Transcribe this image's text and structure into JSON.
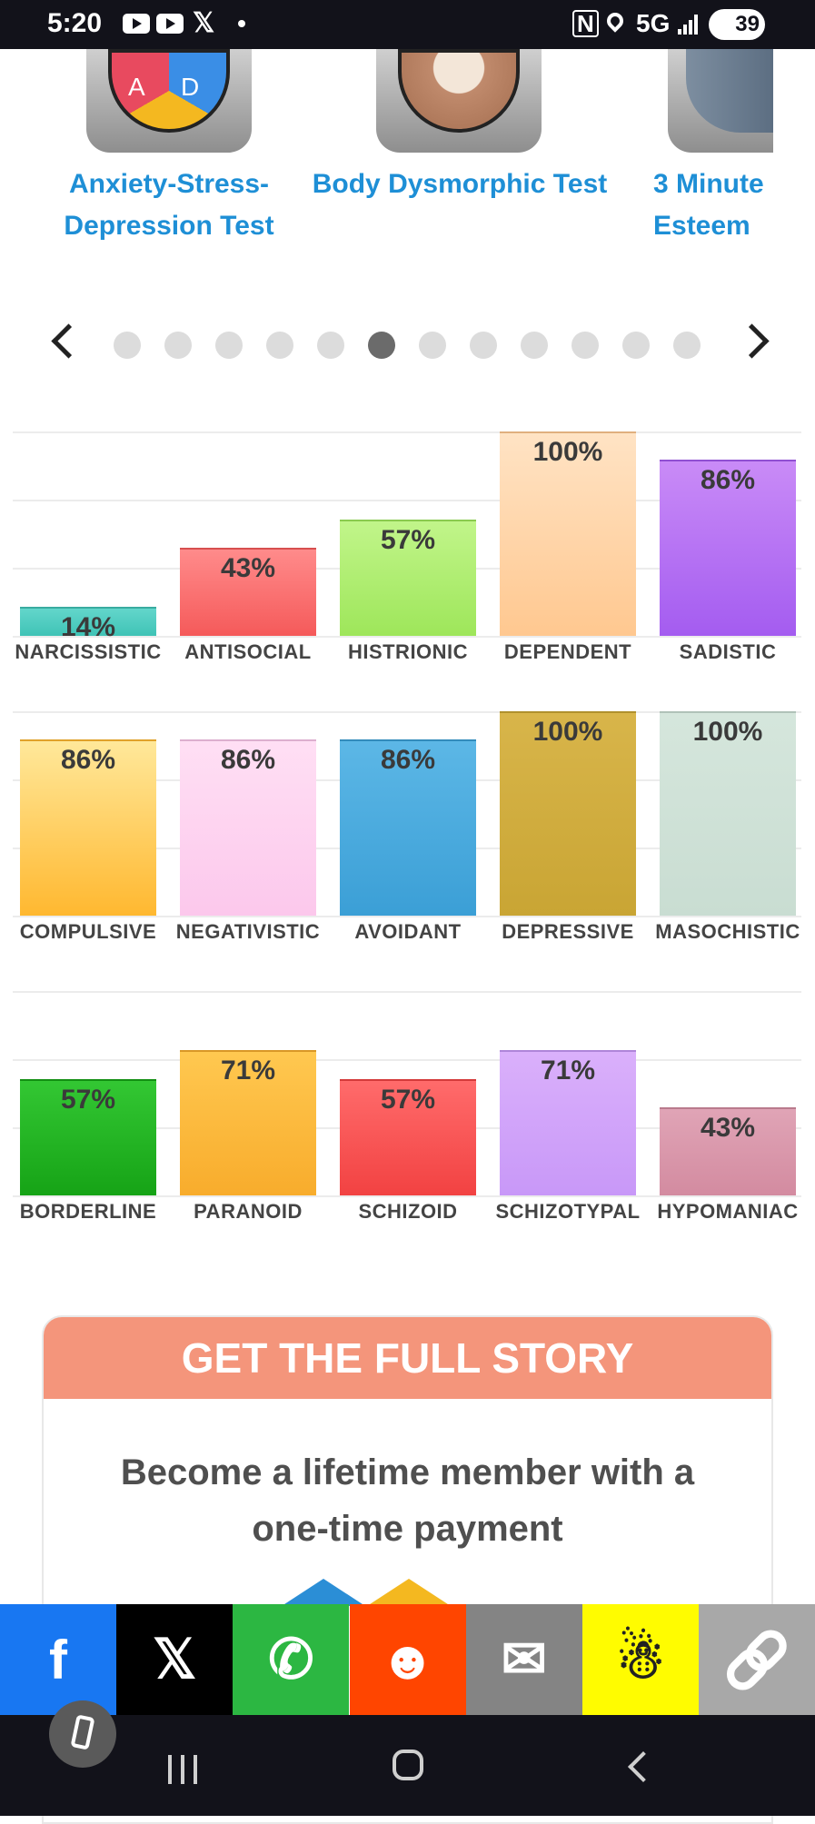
{
  "status_bar": {
    "time": "5:20",
    "x_glyph": "𝕏",
    "nfc_glyph": "N",
    "network": "5G",
    "battery": "39",
    "icons": [
      "youtube-icon",
      "youtube-icon",
      "x-icon",
      "notification-dot",
      "nfc-icon",
      "location-icon",
      "signal-icon",
      "battery-icon"
    ]
  },
  "carousel": {
    "tests": [
      {
        "title": "Anxiety-Stress-Depression Test",
        "badge_left": "A",
        "badge_right": "D"
      },
      {
        "title": "Body Dysmorphic Test"
      },
      {
        "title": "3 Minute Esteem"
      }
    ],
    "active_page": 6,
    "page_count": 12
  },
  "chart_data": {
    "type": "bar",
    "unit": "%",
    "ylim": [
      0,
      100
    ],
    "grid": true,
    "rows": [
      {
        "categories": [
          "NARCISSISTIC",
          "ANTISOCIAL",
          "HISTRIONIC",
          "DEPENDENT",
          "SADISTIC"
        ],
        "values": [
          14,
          43,
          57,
          100,
          86
        ],
        "labels": [
          "14%",
          "43%",
          "57%",
          "100%",
          "86%"
        ],
        "colors": [
          [
            "#63d6cb",
            "#3fc3b6"
          ],
          [
            "#ff8b8b",
            "#f55a5a"
          ],
          [
            "#c1f58a",
            "#9ee65a"
          ],
          [
            "#ffe3c4",
            "#ffc890"
          ],
          [
            "#c98bf7",
            "#a45cf0"
          ]
        ]
      },
      {
        "categories": [
          "COMPULSIVE",
          "NEGATIVISTIC",
          "AVOIDANT",
          "DEPRESSIVE",
          "MASOCHISTIC"
        ],
        "values": [
          86,
          86,
          86,
          100,
          100
        ],
        "labels": [
          "86%",
          "86%",
          "86%",
          "100%",
          "100%"
        ],
        "colors": [
          [
            "#ffe89a",
            "#ffb830"
          ],
          [
            "#ffdff4",
            "#fcc8ec"
          ],
          [
            "#5cb7e6",
            "#3b9fd6"
          ],
          [
            "#d8b54a",
            "#c9a534"
          ],
          [
            "#d5e6dc",
            "#c9ddd2"
          ]
        ]
      },
      {
        "categories": [
          "BORDERLINE",
          "PARANOID",
          "SCHIZOID",
          "SCHIZOTYPAL",
          "HYPOMANIAC"
        ],
        "values": [
          57,
          71,
          57,
          71,
          43
        ],
        "labels": [
          "57%",
          "71%",
          "57%",
          "71%",
          "43%"
        ],
        "colors": [
          [
            "#33c733",
            "#16a316"
          ],
          [
            "#ffc850",
            "#f8ac2c"
          ],
          [
            "#ff6b6b",
            "#f24242"
          ],
          [
            "#dab0fb",
            "#c898f8"
          ],
          [
            "#e0a4b6",
            "#d38ba0"
          ]
        ]
      }
    ]
  },
  "promo": {
    "header": "GET THE FULL STORY",
    "line1": "Become a lifetime member with a",
    "line2": "one-time payment"
  },
  "share_bar": {
    "buttons": [
      {
        "name": "facebook",
        "icon": "facebook-icon",
        "glyph": "f",
        "color": "#1877f2"
      },
      {
        "name": "x",
        "icon": "x-icon",
        "glyph": "𝕏",
        "color": "#000000"
      },
      {
        "name": "whatsapp",
        "icon": "whatsapp-icon",
        "glyph": "✆",
        "color": "#2cb742"
      },
      {
        "name": "reddit",
        "icon": "reddit-icon",
        "glyph": "☻",
        "color": "#ff4500"
      },
      {
        "name": "email",
        "icon": "email-icon",
        "glyph": "✉",
        "color": "#848484"
      },
      {
        "name": "snapchat",
        "icon": "snapchat-icon",
        "glyph": "☃",
        "color": "#fffc00"
      },
      {
        "name": "copy-link",
        "icon": "link-icon",
        "glyph": "🔗",
        "color": "#a8a8a8"
      }
    ]
  }
}
